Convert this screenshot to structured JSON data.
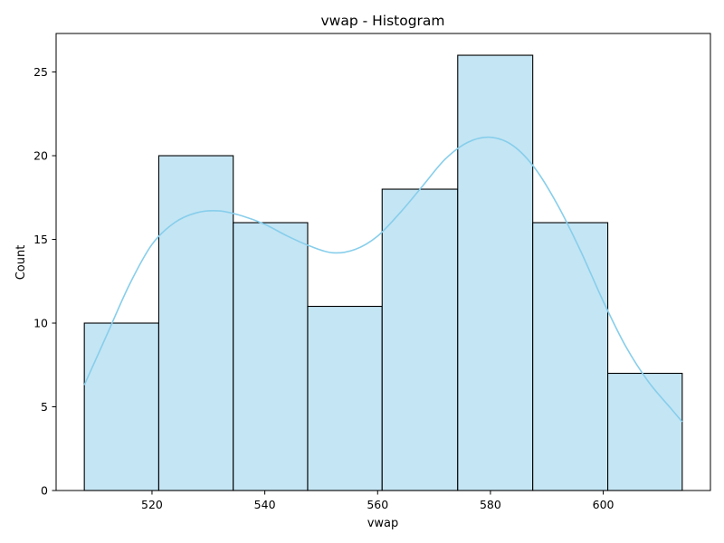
{
  "chart_data": {
    "type": "bar",
    "title": "vwap  - Histogram",
    "xlabel": "vwap",
    "ylabel": "Count",
    "bin_edges": [
      508.0,
      521.2,
      534.4,
      547.6,
      560.8,
      574.2,
      587.5,
      600.8,
      614.0
    ],
    "values": [
      10,
      20,
      16,
      11,
      18,
      26,
      16,
      7
    ],
    "xlim": [
      503.0,
      619.0
    ],
    "ylim": [
      0,
      27.3
    ],
    "xticks": [
      520,
      540,
      560,
      580,
      600
    ],
    "yticks": [
      0,
      5,
      10,
      15,
      20,
      25
    ],
    "kde": {
      "x": [
        508,
        512,
        516,
        520,
        524,
        528,
        532,
        536,
        540,
        544,
        548,
        552,
        556,
        560,
        564,
        568,
        572,
        576,
        580,
        584,
        588,
        592,
        596,
        600,
        604,
        608,
        612,
        614
      ],
      "y": [
        6.3,
        9.3,
        12.3,
        14.7,
        16.0,
        16.6,
        16.7,
        16.4,
        15.9,
        15.2,
        14.6,
        14.2,
        14.4,
        15.2,
        16.6,
        18.2,
        19.8,
        20.8,
        21.1,
        20.6,
        19.2,
        17.0,
        14.3,
        11.3,
        8.6,
        6.5,
        4.9,
        4.1
      ]
    },
    "colors": {
      "bar_fill": "#c4e5f4",
      "bar_edge": "#000000",
      "kde_line": "#87ceeb"
    },
    "grid": false,
    "legend": "none"
  }
}
